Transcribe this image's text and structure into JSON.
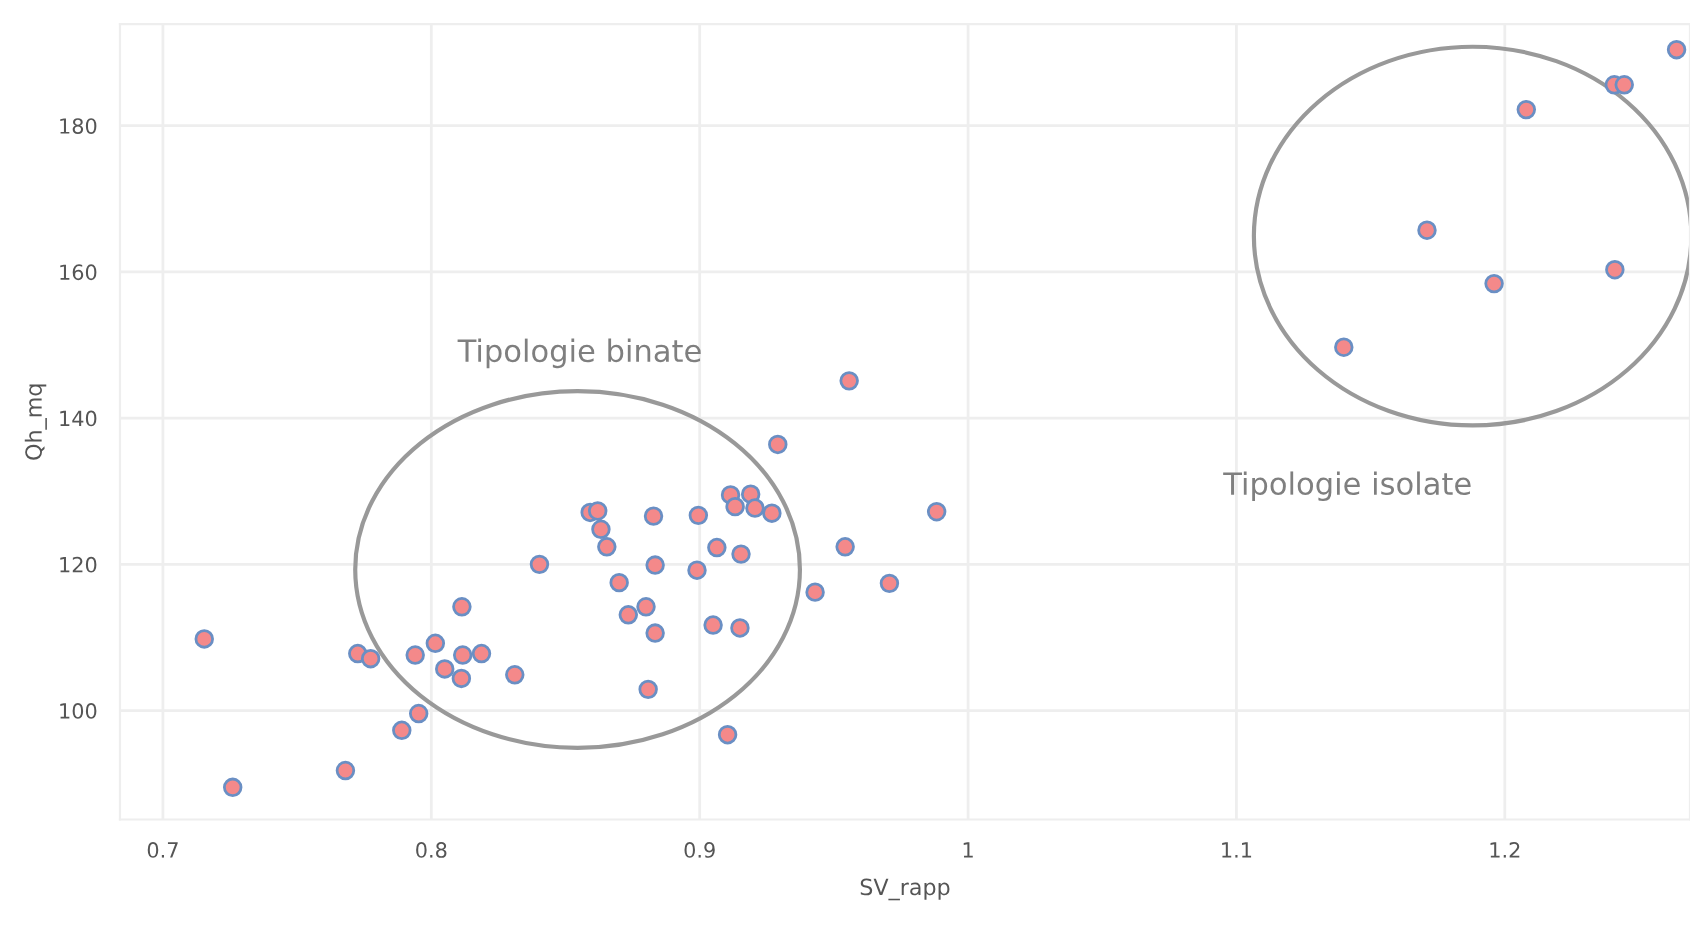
{
  "chart_data": {
    "type": "scatter",
    "xlabel": "SV_rapp",
    "ylabel": "Qh_mq",
    "annotations": [
      "Tipologie binate",
      "Tipologie isolate"
    ],
    "series": [
      {
        "color": "#f4898a",
        "x": [
          0.7154,
          0.726,
          0.768,
          0.7726,
          0.7774,
          0.789,
          0.7953,
          0.794,
          0.8015,
          0.805,
          0.8114,
          0.8117,
          0.8112,
          0.8187,
          0.8311,
          0.8403,
          0.8592,
          0.862,
          0.8632,
          0.8654,
          0.87,
          0.8734,
          0.88,
          0.8808,
          0.8828,
          0.8834,
          0.8834,
          0.8995,
          0.899,
          0.9064,
          0.905,
          0.9104,
          0.9115,
          0.9132,
          0.9154,
          0.915,
          0.919,
          0.9206,
          0.9269,
          0.9291,
          0.943,
          0.9542,
          0.9557,
          0.9707,
          0.9883,
          1.14,
          1.171,
          1.196,
          1.208,
          1.2408,
          1.2445,
          1.241,
          1.264
        ],
        "values": [
          109.8,
          89.5,
          91.8,
          107.8,
          107.1,
          97.3,
          99.6,
          107.6,
          109.2,
          105.7,
          114.2,
          107.6,
          104.4,
          107.8,
          104.9,
          120.0,
          127.1,
          127.3,
          124.8,
          122.4,
          117.5,
          113.1,
          114.2,
          102.9,
          126.6,
          119.9,
          110.6,
          126.7,
          119.2,
          122.3,
          111.7,
          96.7,
          129.5,
          127.9,
          121.4,
          111.3,
          129.6,
          127.7,
          127.0,
          136.4,
          116.2,
          122.4,
          145.1,
          117.4,
          127.2,
          149.7,
          165.7,
          158.4,
          182.2,
          185.6,
          185.6,
          160.3,
          190.4
        ]
      }
    ],
    "marker": "circle",
    "xlim": [
      0.684,
      1.269
    ],
    "ylim": [
      85.1,
      193.9
    ],
    "xticks": [
      0.7,
      0.8,
      0.9,
      1,
      1.1,
      1.2
    ],
    "yticks": [
      100,
      120,
      140,
      160,
      180
    ],
    "grid": true,
    "legend": false
  }
}
